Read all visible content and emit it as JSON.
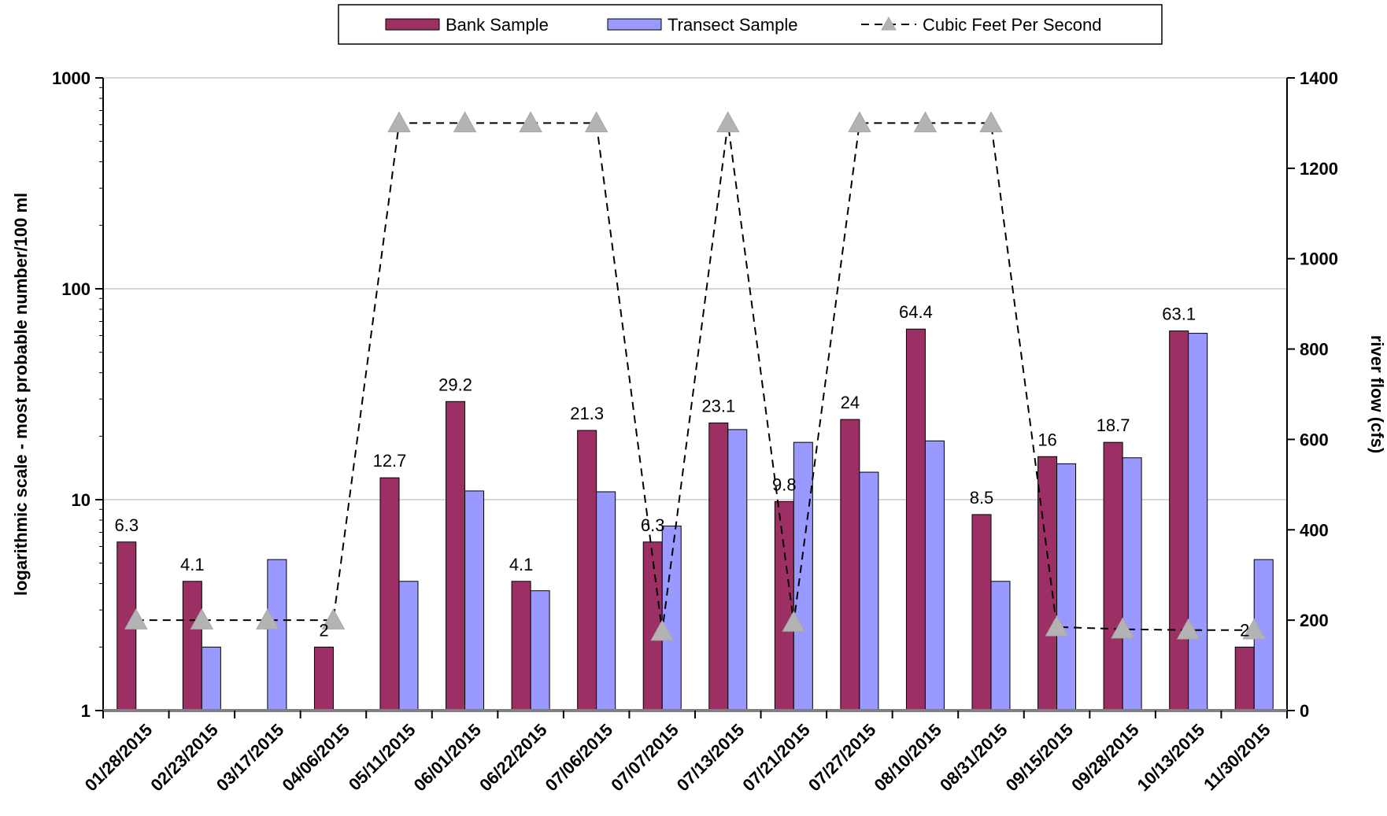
{
  "chart_data": {
    "type": "bar",
    "categories": [
      "01/28/2015",
      "02/23/2015",
      "03/17/2015",
      "04/06/2015",
      "05/11/2015",
      "06/01/2015",
      "06/22/2015",
      "07/06/2015",
      "07/07/2015",
      "07/13/2015",
      "07/21/2015",
      "07/27/2015",
      "08/10/2015",
      "08/31/2015",
      "09/15/2015",
      "09/28/2015",
      "10/13/2015",
      "11/30/2015"
    ],
    "series": [
      {
        "name": "Bank Sample",
        "kind": "bar",
        "axis": "left",
        "color": "#9c2f63",
        "values": [
          6.3,
          4.1,
          null,
          2,
          12.7,
          29.2,
          4.1,
          21.3,
          6.3,
          23.1,
          9.8,
          24,
          64.4,
          8.5,
          16,
          18.7,
          63.1,
          2
        ],
        "labels": [
          "6.3",
          "4.1",
          "",
          "2",
          "12.7",
          "29.2",
          "4.1",
          "21.3",
          "6.3",
          "23.1",
          "9.8",
          "24",
          "64.4",
          "8.5",
          "16",
          "18.7",
          "63.1",
          "2"
        ]
      },
      {
        "name": "Transect Sample",
        "kind": "bar",
        "axis": "left",
        "color": "#9999ff",
        "values": [
          null,
          2,
          5.2,
          null,
          4.1,
          11,
          3.7,
          10.9,
          7.5,
          21.5,
          18.7,
          13.5,
          19,
          4.1,
          14.8,
          15.8,
          61.5,
          5.2
        ]
      },
      {
        "name": "Cubic Feet Per Second",
        "kind": "line",
        "axis": "right",
        "color": "#000000",
        "marker_color": "#b3b3b3",
        "values": [
          200,
          200,
          200,
          200,
          1300,
          1300,
          1300,
          1300,
          175,
          1300,
          195,
          1300,
          1300,
          1300,
          185,
          180,
          178,
          178
        ]
      }
    ],
    "left_axis": {
      "label": "logarithmic scale - most probable number/100 ml",
      "scale": "log",
      "range": [
        1,
        1000
      ],
      "ticks": [
        "1",
        "10",
        "100",
        "1000"
      ]
    },
    "right_axis": {
      "label": "river flow (cfs)",
      "range": [
        0,
        1400
      ],
      "ticks": [
        "0",
        "200",
        "400",
        "600",
        "800",
        "1000",
        "1200",
        "1400"
      ]
    },
    "grid": true,
    "legend_position": "top"
  }
}
